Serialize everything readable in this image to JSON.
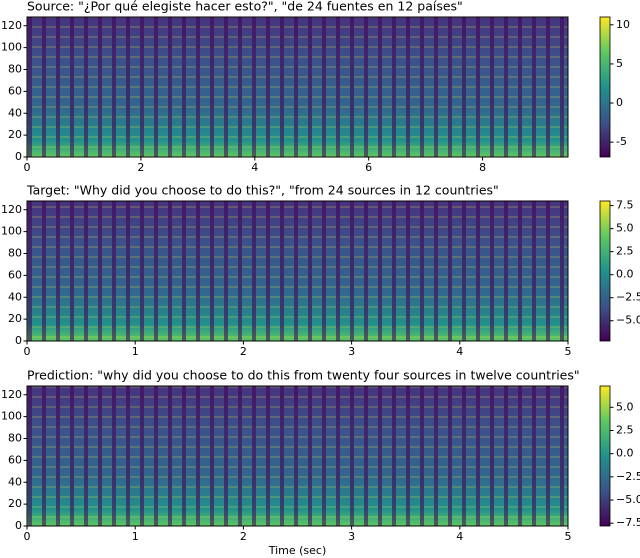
{
  "chart_data": [
    {
      "type": "heatmap",
      "title": "Source: \"¿Por qué elegiste hacer esto?\", \"de 24 fuentes en 12 países\"",
      "colormap": "viridis",
      "xlim": [
        0,
        9.5
      ],
      "xticks": [
        0,
        2,
        4,
        6,
        8
      ],
      "ylim": [
        0,
        128
      ],
      "yticks": [
        0,
        20,
        40,
        60,
        80,
        100,
        120
      ],
      "clim": [
        -6.9,
        11
      ],
      "cticks": [
        -5,
        0,
        5,
        10
      ]
    },
    {
      "type": "heatmap",
      "title": "Target: \"Why did you choose to do this?\", \"from 24 sources in 12 countries\"",
      "colormap": "viridis",
      "xlim": [
        0,
        5
      ],
      "xticks": [
        0,
        1,
        2,
        3,
        4,
        5
      ],
      "ylim": [
        0,
        128
      ],
      "yticks": [
        0,
        20,
        40,
        60,
        80,
        100,
        120
      ],
      "clim": [
        -7.2,
        8.0
      ],
      "cticks": [
        {
          "value": -5,
          "label": "−5.0"
        },
        {
          "value": -2.5,
          "label": "−2.5"
        },
        {
          "value": 0,
          "label": "0.0"
        },
        {
          "value": 2.5,
          "label": "2.5"
        },
        {
          "value": 5,
          "label": "5.0"
        },
        {
          "value": 7.5,
          "label": "7.5"
        }
      ]
    },
    {
      "type": "heatmap",
      "title": "Prediction: \"why did you choose to do this from twenty four sources in twelve countries\"",
      "colormap": "viridis",
      "xlim": [
        0,
        5
      ],
      "xticks": [
        0,
        1,
        2,
        3,
        4,
        5
      ],
      "xlabel": "Time (sec)",
      "ylim": [
        0,
        128
      ],
      "yticks": [
        0,
        20,
        40,
        60,
        80,
        100,
        120
      ],
      "clim": [
        -7.8,
        7.3
      ],
      "cticks": [
        {
          "value": -7.5,
          "label": "−7.5"
        },
        {
          "value": -5,
          "label": "−5.0"
        },
        {
          "value": -2.5,
          "label": "−2.5"
        },
        {
          "value": 0,
          "label": "0.0"
        },
        {
          "value": 2.5,
          "label": "2.5"
        },
        {
          "value": 5,
          "label": "5.0"
        }
      ]
    }
  ]
}
